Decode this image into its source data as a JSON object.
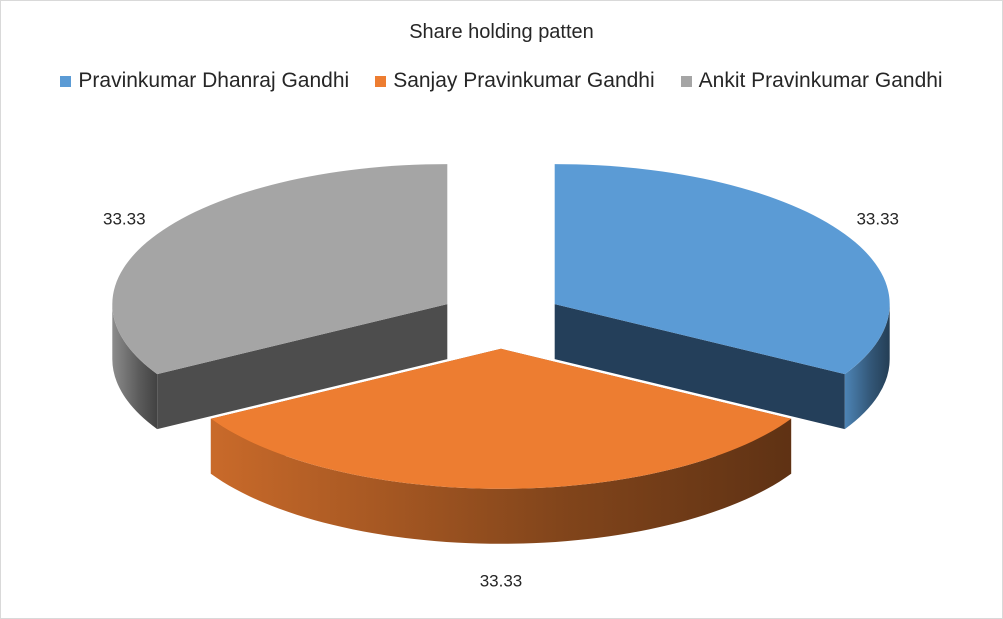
{
  "chart_data": {
    "type": "pie",
    "title": "Share holding patten",
    "legend_position": "top",
    "style": "3d-exploded",
    "categories": [
      "Pravinkumar Dhanraj Gandhi",
      "Sanjay Pravinkumar Gandhi",
      "Ankit Pravinkumar Gandhi"
    ],
    "values": [
      33.33,
      33.33,
      33.33
    ],
    "data_labels": [
      "33.33",
      "33.33",
      "33.33"
    ],
    "colors": [
      "#5b9bd5",
      "#ed7d31",
      "#a5a5a5"
    ],
    "side_colors": [
      "#243f5a",
      "#8a4a1a",
      "#4d4d4d"
    ]
  }
}
